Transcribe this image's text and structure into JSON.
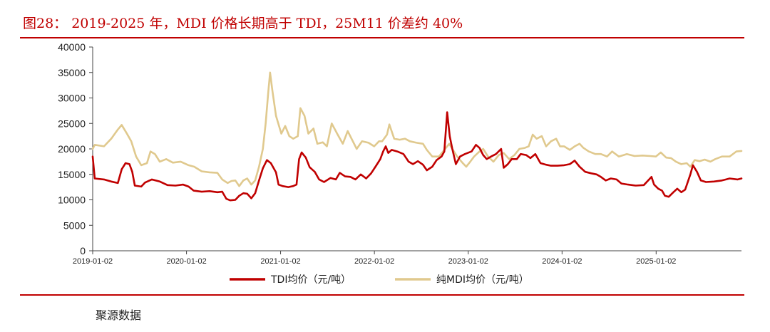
{
  "figure": {
    "title": "图28：  2019-2025 年，MDI 价格长期高于 TDI，25M11 价差约 40%",
    "source": "聚源数据"
  },
  "chart_data": {
    "type": "line",
    "ylim": [
      0,
      40000
    ],
    "yticks": [
      0,
      5000,
      10000,
      15000,
      20000,
      25000,
      30000,
      35000,
      40000
    ],
    "xlim": [
      "2019-01-02",
      "2025-11-30"
    ],
    "xticks": [
      "2019-01-02",
      "2020-01-02",
      "2021-01-02",
      "2022-01-02",
      "2023-01-02",
      "2024-01-02",
      "2025-01-02"
    ],
    "grid": false,
    "legend_position": "bottom",
    "series": [
      {
        "name": "TDI均价（元/吨）",
        "color": "#c00000",
        "points": [
          [
            "2019-01-02",
            18500
          ],
          [
            "2019-01-10",
            14200
          ],
          [
            "2019-02-15",
            14000
          ],
          [
            "2019-03-15",
            13600
          ],
          [
            "2019-04-10",
            13300
          ],
          [
            "2019-04-25",
            16000
          ],
          [
            "2019-05-10",
            17200
          ],
          [
            "2019-05-25",
            17000
          ],
          [
            "2019-06-05",
            15500
          ],
          [
            "2019-06-15",
            12800
          ],
          [
            "2019-07-10",
            12600
          ],
          [
            "2019-07-25",
            13400
          ],
          [
            "2019-08-20",
            14000
          ],
          [
            "2019-09-20",
            13600
          ],
          [
            "2019-10-20",
            12900
          ],
          [
            "2019-11-20",
            12800
          ],
          [
            "2019-12-20",
            13000
          ],
          [
            "2020-01-10",
            12600
          ],
          [
            "2020-01-30",
            11800
          ],
          [
            "2020-03-01",
            11600
          ],
          [
            "2020-04-01",
            11700
          ],
          [
            "2020-05-01",
            11500
          ],
          [
            "2020-05-20",
            11600
          ],
          [
            "2020-06-05",
            10200
          ],
          [
            "2020-06-20",
            9900
          ],
          [
            "2020-07-10",
            10000
          ],
          [
            "2020-07-25",
            10800
          ],
          [
            "2020-08-10",
            11300
          ],
          [
            "2020-08-25",
            11200
          ],
          [
            "2020-09-10",
            10300
          ],
          [
            "2020-09-25",
            11300
          ],
          [
            "2020-10-10",
            13800
          ],
          [
            "2020-10-25",
            16200
          ],
          [
            "2020-11-10",
            17800
          ],
          [
            "2020-11-25",
            17200
          ],
          [
            "2020-12-15",
            15400
          ],
          [
            "2020-12-25",
            13000
          ],
          [
            "2021-01-10",
            12700
          ],
          [
            "2021-02-01",
            12500
          ],
          [
            "2021-02-20",
            12700
          ],
          [
            "2021-03-05",
            13000
          ],
          [
            "2021-03-15",
            18000
          ],
          [
            "2021-03-25",
            19300
          ],
          [
            "2021-04-10",
            18300
          ],
          [
            "2021-04-25",
            16400
          ],
          [
            "2021-05-15",
            15500
          ],
          [
            "2021-06-01",
            14000
          ],
          [
            "2021-06-20",
            13500
          ],
          [
            "2021-07-15",
            14300
          ],
          [
            "2021-08-05",
            14000
          ],
          [
            "2021-08-20",
            15300
          ],
          [
            "2021-09-10",
            14600
          ],
          [
            "2021-10-01",
            14500
          ],
          [
            "2021-10-20",
            14000
          ],
          [
            "2021-11-10",
            15000
          ],
          [
            "2021-12-01",
            14200
          ],
          [
            "2021-12-20",
            15200
          ],
          [
            "2022-01-10",
            16800
          ],
          [
            "2022-01-25",
            18000
          ],
          [
            "2022-02-05",
            19500
          ],
          [
            "2022-02-15",
            20500
          ],
          [
            "2022-02-25",
            19200
          ],
          [
            "2022-03-10",
            19800
          ],
          [
            "2022-04-01",
            19500
          ],
          [
            "2022-04-25",
            19000
          ],
          [
            "2022-05-15",
            17500
          ],
          [
            "2022-06-01",
            17000
          ],
          [
            "2022-06-20",
            17600
          ],
          [
            "2022-07-10",
            16900
          ],
          [
            "2022-07-25",
            15800
          ],
          [
            "2022-08-15",
            16500
          ],
          [
            "2022-09-01",
            17800
          ],
          [
            "2022-09-20",
            18500
          ],
          [
            "2022-10-01",
            19500
          ],
          [
            "2022-10-12",
            27200
          ],
          [
            "2022-10-22",
            22500
          ],
          [
            "2022-11-01",
            20000
          ],
          [
            "2022-11-15",
            17000
          ],
          [
            "2022-12-01",
            18500
          ],
          [
            "2022-12-20",
            19000
          ],
          [
            "2023-01-15",
            19500
          ],
          [
            "2023-02-01",
            20800
          ],
          [
            "2023-02-15",
            20200
          ],
          [
            "2023-03-01",
            18800
          ],
          [
            "2023-03-15",
            18000
          ],
          [
            "2023-04-01",
            18500
          ],
          [
            "2023-04-20",
            19000
          ],
          [
            "2023-05-10",
            20000
          ],
          [
            "2023-05-20",
            16300
          ],
          [
            "2023-06-05",
            17000
          ],
          [
            "2023-06-20",
            18000
          ],
          [
            "2023-07-10",
            18000
          ],
          [
            "2023-07-25",
            19000
          ],
          [
            "2023-08-15",
            18800
          ],
          [
            "2023-09-01",
            18200
          ],
          [
            "2023-09-20",
            19000
          ],
          [
            "2023-10-10",
            17200
          ],
          [
            "2023-11-01",
            16900
          ],
          [
            "2023-11-20",
            16700
          ],
          [
            "2023-12-15",
            16700
          ],
          [
            "2024-01-10",
            16800
          ],
          [
            "2024-02-01",
            17000
          ],
          [
            "2024-02-20",
            17700
          ],
          [
            "2024-03-10",
            16500
          ],
          [
            "2024-04-01",
            15500
          ],
          [
            "2024-04-25",
            15200
          ],
          [
            "2024-05-15",
            15000
          ],
          [
            "2024-06-01",
            14500
          ],
          [
            "2024-06-20",
            13800
          ],
          [
            "2024-07-10",
            14200
          ],
          [
            "2024-08-01",
            14000
          ],
          [
            "2024-08-20",
            13200
          ],
          [
            "2024-09-15",
            13000
          ],
          [
            "2024-10-15",
            12800
          ],
          [
            "2024-11-15",
            12900
          ],
          [
            "2024-12-15",
            14500
          ],
          [
            "2024-12-25",
            13000
          ],
          [
            "2025-01-10",
            12200
          ],
          [
            "2025-01-25",
            11800
          ],
          [
            "2025-02-05",
            10800
          ],
          [
            "2025-02-20",
            10600
          ],
          [
            "2025-03-10",
            11500
          ],
          [
            "2025-03-25",
            12200
          ],
          [
            "2025-04-10",
            11500
          ],
          [
            "2025-04-25",
            12000
          ],
          [
            "2025-05-15",
            15000
          ],
          [
            "2025-05-25",
            16800
          ],
          [
            "2025-06-10",
            15500
          ],
          [
            "2025-06-25",
            13800
          ],
          [
            "2025-07-15",
            13500
          ],
          [
            "2025-08-15",
            13600
          ],
          [
            "2025-09-15",
            13800
          ],
          [
            "2025-10-15",
            14200
          ],
          [
            "2025-11-15",
            14000
          ],
          [
            "2025-11-30",
            14200
          ]
        ]
      },
      {
        "name": "纯MDI均价（元/吨）",
        "color": "#e0c98e",
        "points": [
          [
            "2019-01-02",
            20000
          ],
          [
            "2019-01-10",
            20800
          ],
          [
            "2019-02-15",
            20500
          ],
          [
            "2019-03-15",
            22000
          ],
          [
            "2019-04-10",
            23800
          ],
          [
            "2019-04-25",
            24700
          ],
          [
            "2019-05-15",
            23000
          ],
          [
            "2019-06-01",
            21500
          ],
          [
            "2019-06-20",
            18500
          ],
          [
            "2019-07-10",
            16800
          ],
          [
            "2019-08-01",
            17200
          ],
          [
            "2019-08-15",
            19500
          ],
          [
            "2019-09-01",
            19000
          ],
          [
            "2019-09-20",
            17500
          ],
          [
            "2019-10-15",
            18000
          ],
          [
            "2019-11-10",
            17300
          ],
          [
            "2019-12-10",
            17500
          ],
          [
            "2020-01-10",
            16800
          ],
          [
            "2020-02-01",
            16500
          ],
          [
            "2020-03-01",
            15600
          ],
          [
            "2020-04-01",
            15400
          ],
          [
            "2020-05-01",
            15300
          ],
          [
            "2020-05-20",
            14000
          ],
          [
            "2020-06-10",
            13300
          ],
          [
            "2020-06-25",
            13700
          ],
          [
            "2020-07-10",
            13800
          ],
          [
            "2020-07-25",
            12700
          ],
          [
            "2020-08-10",
            13800
          ],
          [
            "2020-08-25",
            14200
          ],
          [
            "2020-09-10",
            13000
          ],
          [
            "2020-09-25",
            13800
          ],
          [
            "2020-10-10",
            16500
          ],
          [
            "2020-10-25",
            20000
          ],
          [
            "2020-11-05",
            25000
          ],
          [
            "2020-11-15",
            31000
          ],
          [
            "2020-11-22",
            35000
          ],
          [
            "2020-12-01",
            31500
          ],
          [
            "2020-12-15",
            26500
          ],
          [
            "2021-01-05",
            23000
          ],
          [
            "2021-01-20",
            24500
          ],
          [
            "2021-02-05",
            22500
          ],
          [
            "2021-02-20",
            22000
          ],
          [
            "2021-03-10",
            22500
          ],
          [
            "2021-03-20",
            28000
          ],
          [
            "2021-04-05",
            26500
          ],
          [
            "2021-04-20",
            23000
          ],
          [
            "2021-05-10",
            24000
          ],
          [
            "2021-05-25",
            21000
          ],
          [
            "2021-06-15",
            21300
          ],
          [
            "2021-07-01",
            20500
          ],
          [
            "2021-07-20",
            25000
          ],
          [
            "2021-08-10",
            23000
          ],
          [
            "2021-09-01",
            21000
          ],
          [
            "2021-09-20",
            23500
          ],
          [
            "2021-10-10",
            21500
          ],
          [
            "2021-10-25",
            20000
          ],
          [
            "2021-11-15",
            21500
          ],
          [
            "2021-12-10",
            21200
          ],
          [
            "2022-01-01",
            20500
          ],
          [
            "2022-01-20",
            21500
          ],
          [
            "2022-02-01",
            21500
          ],
          [
            "2022-02-20",
            22800
          ],
          [
            "2022-03-01",
            24800
          ],
          [
            "2022-03-20",
            22000
          ],
          [
            "2022-04-10",
            21800
          ],
          [
            "2022-05-01",
            22000
          ],
          [
            "2022-05-20",
            21500
          ],
          [
            "2022-06-15",
            21200
          ],
          [
            "2022-07-10",
            21000
          ],
          [
            "2022-07-25",
            19800
          ],
          [
            "2022-08-15",
            18500
          ],
          [
            "2022-09-10",
            18500
          ],
          [
            "2022-10-01",
            19800
          ],
          [
            "2022-10-20",
            21000
          ],
          [
            "2022-11-01",
            20000
          ],
          [
            "2022-11-20",
            18500
          ],
          [
            "2022-12-10",
            17300
          ],
          [
            "2022-12-25",
            16500
          ],
          [
            "2023-01-10",
            17500
          ],
          [
            "2023-01-25",
            18500
          ],
          [
            "2023-02-15",
            19500
          ],
          [
            "2023-03-01",
            20000
          ],
          [
            "2023-03-20",
            18500
          ],
          [
            "2023-04-10",
            17500
          ],
          [
            "2023-05-01",
            18800
          ],
          [
            "2023-05-20",
            19200
          ],
          [
            "2023-06-10",
            18000
          ],
          [
            "2023-07-01",
            18800
          ],
          [
            "2023-07-20",
            20000
          ],
          [
            "2023-08-10",
            20200
          ],
          [
            "2023-08-25",
            20500
          ],
          [
            "2023-09-10",
            22800
          ],
          [
            "2023-09-25",
            22000
          ],
          [
            "2023-10-15",
            22500
          ],
          [
            "2023-11-01",
            20500
          ],
          [
            "2023-11-20",
            21500
          ],
          [
            "2023-12-10",
            22000
          ],
          [
            "2023-12-25",
            20500
          ],
          [
            "2024-01-10",
            20500
          ],
          [
            "2024-02-01",
            19800
          ],
          [
            "2024-02-20",
            20500
          ],
          [
            "2024-03-10",
            21000
          ],
          [
            "2024-03-25",
            20200
          ],
          [
            "2024-04-15",
            19500
          ],
          [
            "2024-05-10",
            19000
          ],
          [
            "2024-06-01",
            19000
          ],
          [
            "2024-06-25",
            18500
          ],
          [
            "2024-07-15",
            19500
          ],
          [
            "2024-08-10",
            18500
          ],
          [
            "2024-09-10",
            19000
          ],
          [
            "2024-10-10",
            18600
          ],
          [
            "2024-11-10",
            18700
          ],
          [
            "2024-12-10",
            18600
          ],
          [
            "2025-01-01",
            18500
          ],
          [
            "2025-01-20",
            19300
          ],
          [
            "2025-02-10",
            18300
          ],
          [
            "2025-03-01",
            18200
          ],
          [
            "2025-03-20",
            17500
          ],
          [
            "2025-04-10",
            17000
          ],
          [
            "2025-05-01",
            17200
          ],
          [
            "2025-05-15",
            16500
          ],
          [
            "2025-06-01",
            17800
          ],
          [
            "2025-06-20",
            17600
          ],
          [
            "2025-07-10",
            17900
          ],
          [
            "2025-08-01",
            17500
          ],
          [
            "2025-08-20",
            18000
          ],
          [
            "2025-09-15",
            18500
          ],
          [
            "2025-10-15",
            18500
          ],
          [
            "2025-11-10",
            19500
          ],
          [
            "2025-11-30",
            19600
          ]
        ]
      }
    ]
  }
}
